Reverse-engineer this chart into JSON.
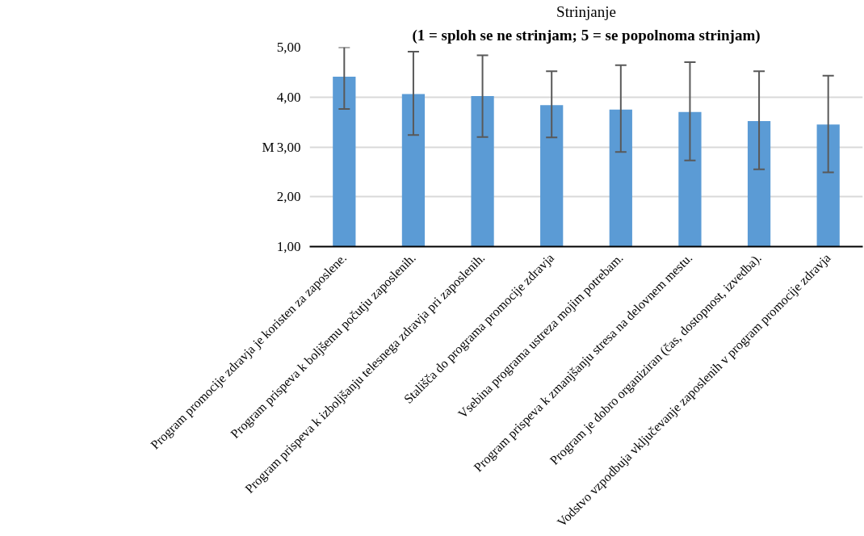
{
  "chart_data": {
    "type": "bar",
    "title": "Strinjanje",
    "subtitle": "(1 = sploh se ne strinjam; 5 = se popolnoma strinjam)",
    "annotations": [
      "M"
    ],
    "categories": [
      "Program promocije zdravja je koristen za zaposlene.",
      "Program prispeva k boljšemu počutju zaposlenih.",
      "Program prispeva k izboljšanju telesnega zdravja pri zaposlenih.",
      "Stališča do programa promocije zdravja",
      "Vsebina programa ustreza mojim potrebam.",
      "Program prispeva k zmanjšanju stresa na delovnem mestu.",
      "Program je dobro organiziran (čas, dostopnost, izvedba).",
      "Vodstvo vzpodbuja vključevanje zaposlenih v program promocije zdravja"
    ],
    "values": [
      4.41,
      4.06,
      4.02,
      3.84,
      3.75,
      3.7,
      3.52,
      3.45
    ],
    "errors": [
      [
        3.76,
        5.0
      ],
      [
        3.24,
        4.91
      ],
      [
        3.2,
        4.84
      ],
      [
        3.19,
        4.52
      ],
      [
        2.9,
        4.64
      ],
      [
        2.73,
        4.7
      ],
      [
        2.55,
        4.52
      ],
      [
        2.49,
        4.43
      ]
    ],
    "color": "#5b9bd5",
    "ylim": [
      1,
      5
    ],
    "yticks": [
      {
        "value": 1,
        "label": "1,00"
      },
      {
        "value": 2,
        "label": "2,00"
      },
      {
        "value": 3,
        "label": "3,00"
      },
      {
        "value": 4,
        "label": "4,00"
      },
      {
        "value": 5,
        "label": "5,00"
      }
    ],
    "grid": "y"
  }
}
